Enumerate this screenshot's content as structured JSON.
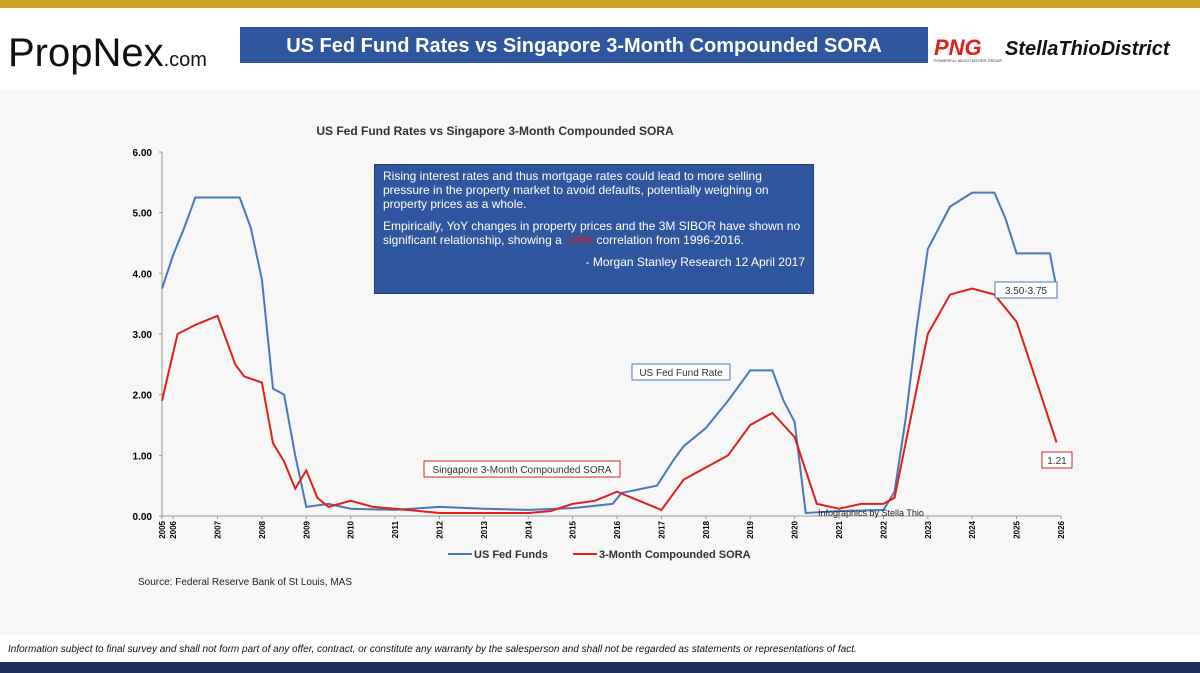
{
  "header": {
    "logo_left": "PropNex",
    "logo_left_suffix": ".com",
    "banner_title": "US Fed Fund Rates vs Singapore 3-Month Compounded SORA",
    "logo_right_mark": "PNG",
    "logo_right_sub": "POWERFUL NEGOTIATORS GROUP",
    "logo_right": "StellaThioDistrict"
  },
  "chart_data": {
    "type": "line",
    "title": "US Fed Fund Rates vs Singapore 3-Month Compounded SORA",
    "xlim": [
      2005.75,
      2026
    ],
    "xticks": [
      {
        "value": 2005.75,
        "label": "2005"
      },
      2006,
      2007,
      2008,
      2009,
      2010,
      2011,
      2012,
      2013,
      2014,
      2015,
      2016,
      2017,
      2018,
      2019,
      2020,
      2021,
      2022,
      2023,
      2024,
      2025,
      2026
    ],
    "ylim": [
      0,
      6
    ],
    "yticks": [
      {
        "value": 0,
        "label": "0.00"
      },
      {
        "value": 1,
        "label": "1.00"
      },
      {
        "value": 2,
        "label": "2.00"
      },
      {
        "value": 3,
        "label": "3.00"
      },
      {
        "value": 4,
        "label": "4.00"
      },
      {
        "value": 5,
        "label": "5.00"
      },
      {
        "value": 6,
        "label": "6.00"
      }
    ],
    "series": [
      {
        "name": "US Fed Funds",
        "color": "#4a78b8",
        "x": [
          2005.75,
          2006,
          2006.25,
          2006.5,
          2007,
          2007.5,
          2007.75,
          2008,
          2008.25,
          2008.5,
          2008.75,
          2009,
          2009.5,
          2010,
          2011,
          2012,
          2013,
          2014,
          2015,
          2015.9,
          2016.1,
          2016.9,
          2017.25,
          2017.5,
          2018,
          2018.5,
          2019,
          2019.5,
          2019.75,
          2020,
          2020.25,
          2021,
          2022,
          2022.25,
          2022.5,
          2022.75,
          2023,
          2023.5,
          2024,
          2024.5,
          2024.75,
          2025,
          2025.75,
          2025.9
        ],
        "values": [
          3.75,
          4.3,
          4.75,
          5.25,
          5.25,
          5.25,
          4.75,
          3.9,
          2.1,
          2.0,
          1.0,
          0.15,
          0.2,
          0.12,
          0.1,
          0.15,
          0.12,
          0.1,
          0.13,
          0.2,
          0.38,
          0.5,
          0.9,
          1.15,
          1.45,
          1.9,
          2.4,
          2.4,
          1.9,
          1.55,
          0.05,
          0.08,
          0.1,
          0.4,
          1.6,
          3.1,
          4.4,
          5.1,
          5.33,
          5.33,
          4.9,
          4.33,
          4.33,
          3.75
        ]
      },
      {
        "name": "3-Month Compounded SORA",
        "color": "#e0201b",
        "x": [
          2005.75,
          2006.1,
          2006.5,
          2007,
          2007.4,
          2007.6,
          2008,
          2008.25,
          2008.5,
          2008.75,
          2009,
          2009.25,
          2009.5,
          2010,
          2010.5,
          2011,
          2012,
          2013,
          2014,
          2014.5,
          2015,
          2015.5,
          2016,
          2016.5,
          2017,
          2017.5,
          2018,
          2018.5,
          2019,
          2019.5,
          2020,
          2020.5,
          2021,
          2021.5,
          2022,
          2022.25,
          2022.75,
          2023,
          2023.5,
          2024,
          2024.5,
          2025,
          2025.5,
          2025.9
        ],
        "values": [
          1.9,
          3.0,
          3.15,
          3.3,
          2.5,
          2.3,
          2.2,
          1.2,
          0.9,
          0.45,
          0.75,
          0.3,
          0.15,
          0.25,
          0.15,
          0.12,
          0.05,
          0.05,
          0.05,
          0.08,
          0.2,
          0.25,
          0.4,
          0.25,
          0.1,
          0.6,
          0.8,
          1.0,
          1.5,
          1.7,
          1.3,
          0.2,
          0.12,
          0.2,
          0.2,
          0.3,
          2.1,
          3.0,
          3.65,
          3.75,
          3.65,
          3.2,
          2.1,
          1.21
        ]
      }
    ],
    "annotations": {
      "fed_range": "3.50-3.75",
      "sora_last": "1.21",
      "fed_label": "US Fed Fund Rate",
      "sora_label": "Singapore 3-Month Compounded SORA",
      "credit": "Infographics by Stella Thio"
    },
    "quote": {
      "p1": "Rising interest rates and thus mortgage rates could lead to more selling pressure in the property market to avoid defaults, potentially weighing on property prices as a whole.",
      "p2a": "Empirically, YoY changes in property prices and the 3M SIBOR have shown no significant relationship, showing a",
      "p2b": "-10%",
      "p2c": "correlation from 1996-2016.",
      "source": "- Morgan Stanley Research 12 April 2017"
    },
    "source": "Source: Federal Reserve Bank of St Louis, MAS"
  },
  "footer": {
    "disclaimer": "Information subject to final survey and shall not form part of any offer, contract, or constitute any warranty by the salesperson and shall not be regarded as statements or representations of fact."
  }
}
